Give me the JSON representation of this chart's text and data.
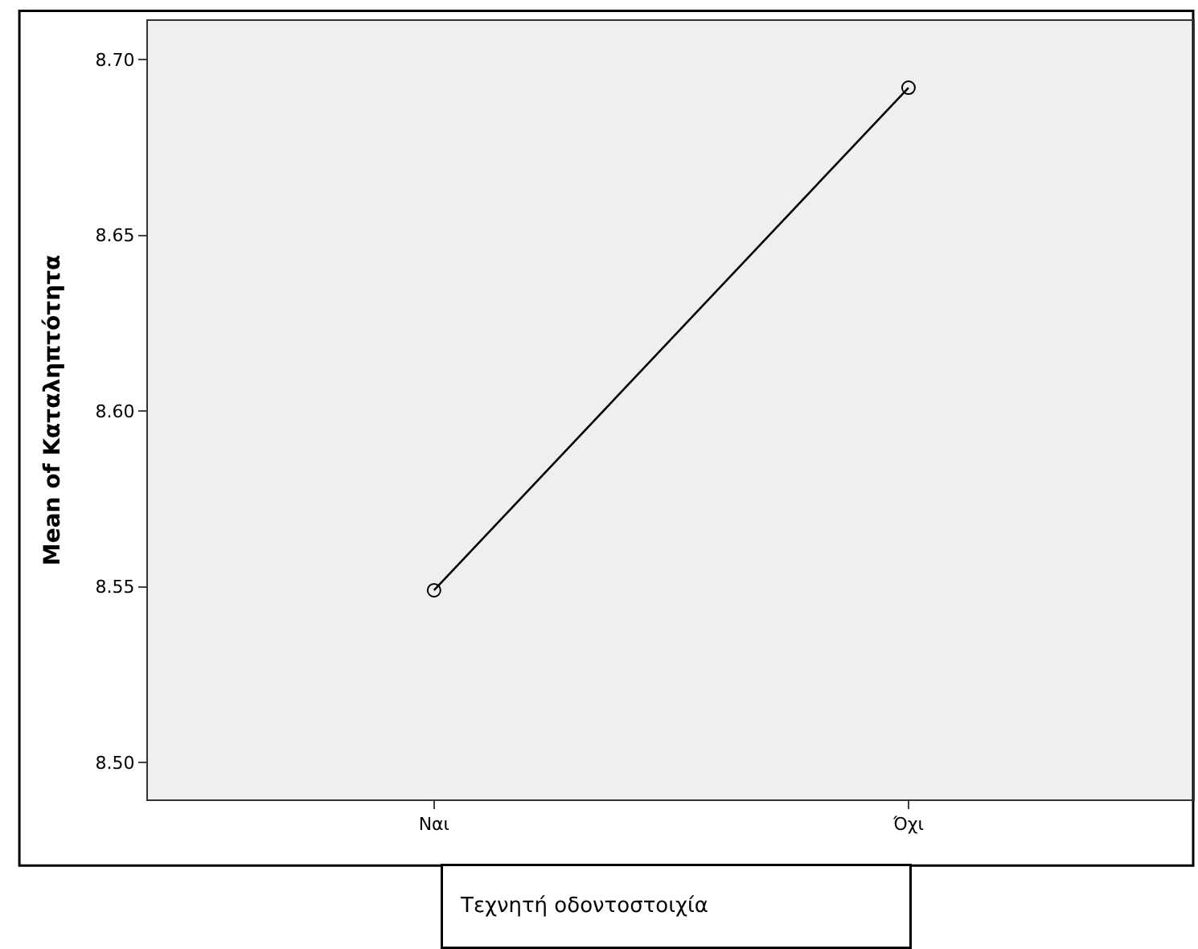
{
  "chart_data": {
    "type": "line",
    "xlabel": "Τεχνητή οδοντοστοιχία",
    "ylabel": "Mean of Καταληπτότητα",
    "categories": [
      "Ναι",
      "Όχι"
    ],
    "series": [
      {
        "color": "#000000",
        "values": [
          8.549,
          8.692
        ]
      }
    ],
    "ylim": [
      8.4895,
      8.711
    ],
    "yticks": [
      {
        "value": 8.5,
        "label": "8.50"
      },
      {
        "value": 8.55,
        "label": "8.55"
      },
      {
        "value": 8.6,
        "label": "8.60"
      },
      {
        "value": 8.65,
        "label": "8.65"
      },
      {
        "value": 8.7,
        "label": "8.70"
      }
    ],
    "marker": "circle",
    "line_style": "solid",
    "grid": false
  }
}
